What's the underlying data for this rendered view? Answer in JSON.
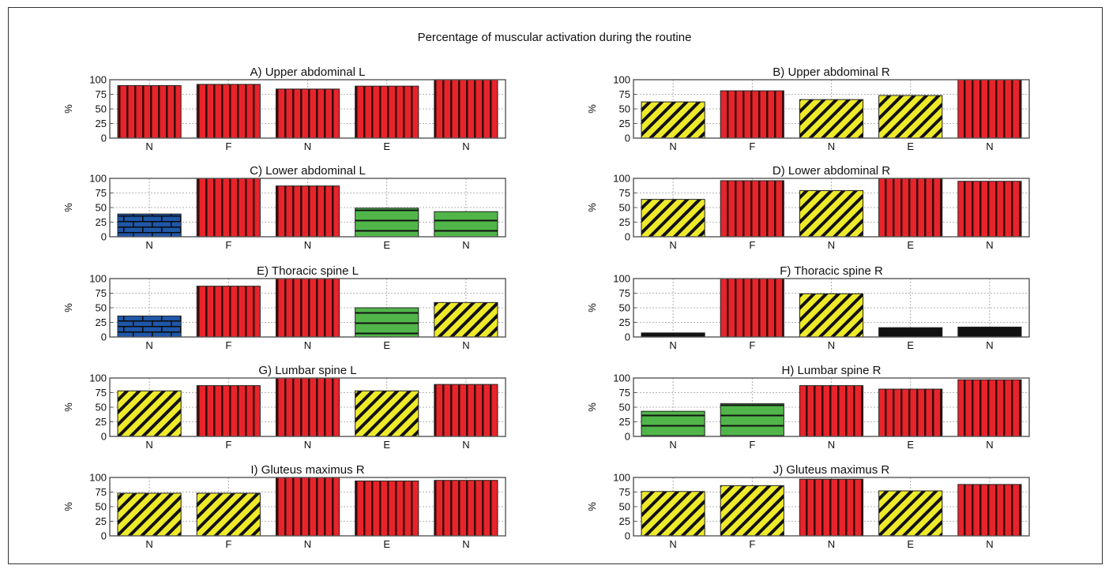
{
  "title": "Percentage of muscular activation during the routine",
  "ylabel": "%",
  "categories": [
    "N",
    "F",
    "N",
    "E",
    "N"
  ],
  "ylim": [
    0,
    100
  ],
  "yticks": [
    0,
    25,
    50,
    75,
    100
  ],
  "grid": true,
  "colors": {
    "red": "#e8242b",
    "yellow": "#eeea2a",
    "blue": "#1f57a8",
    "green": "#51b64a",
    "black": "#111111"
  },
  "chart_data": [
    {
      "type": "bar",
      "title": "A) Upper abdominal L",
      "categories": [
        "N",
        "F",
        "N",
        "E",
        "N"
      ],
      "values": [
        90,
        92,
        84,
        89,
        100
      ],
      "patterns": [
        "red",
        "red",
        "red",
        "red",
        "red"
      ],
      "ylabel": "%",
      "ylim": [
        0,
        100
      ]
    },
    {
      "type": "bar",
      "title": "B) Upper abdominal R",
      "categories": [
        "N",
        "F",
        "N",
        "E",
        "N"
      ],
      "values": [
        62,
        81,
        66,
        73,
        100
      ],
      "patterns": [
        "yellow",
        "red",
        "yellow",
        "yellow",
        "red"
      ],
      "ylabel": "%",
      "ylim": [
        0,
        100
      ]
    },
    {
      "type": "bar",
      "title": "C) Lower abdominal L",
      "categories": [
        "N",
        "F",
        "N",
        "E",
        "N"
      ],
      "values": [
        39,
        100,
        87,
        49,
        43
      ],
      "patterns": [
        "blue",
        "red",
        "red",
        "green",
        "green"
      ],
      "ylabel": "%",
      "ylim": [
        0,
        100
      ]
    },
    {
      "type": "bar",
      "title": "D) Lower abdominal R",
      "categories": [
        "N",
        "F",
        "N",
        "E",
        "N"
      ],
      "values": [
        64,
        96,
        79,
        100,
        95
      ],
      "patterns": [
        "yellow",
        "red",
        "yellow",
        "red",
        "red"
      ],
      "ylabel": "%",
      "ylim": [
        0,
        100
      ]
    },
    {
      "type": "bar",
      "title": "E) Thoracic spine L",
      "categories": [
        "N",
        "F",
        "N",
        "E",
        "N"
      ],
      "values": [
        36,
        87,
        100,
        50,
        59
      ],
      "patterns": [
        "blue",
        "red",
        "red",
        "green",
        "yellow"
      ],
      "ylabel": "%",
      "ylim": [
        0,
        100
      ]
    },
    {
      "type": "bar",
      "title": "F) Thoracic spine R",
      "categories": [
        "N",
        "F",
        "N",
        "E",
        "N"
      ],
      "values": [
        7,
        100,
        74,
        16,
        17
      ],
      "patterns": [
        "black",
        "red",
        "yellow",
        "black",
        "black"
      ],
      "ylabel": "%",
      "ylim": [
        0,
        100
      ]
    },
    {
      "type": "bar",
      "title": "G) Lumbar spine L",
      "categories": [
        "N",
        "F",
        "N",
        "E",
        "N"
      ],
      "values": [
        78,
        87,
        100,
        78,
        89
      ],
      "patterns": [
        "yellow",
        "red",
        "red",
        "yellow",
        "red"
      ],
      "ylabel": "%",
      "ylim": [
        0,
        100
      ]
    },
    {
      "type": "bar",
      "title": "H) Lumbar spine R",
      "categories": [
        "N",
        "F",
        "N",
        "E",
        "N"
      ],
      "values": [
        43,
        56,
        87,
        81,
        97
      ],
      "patterns": [
        "green",
        "green",
        "red",
        "red",
        "red"
      ],
      "ylabel": "%",
      "ylim": [
        0,
        100
      ]
    },
    {
      "type": "bar",
      "title": "I) Gluteus maximus R",
      "categories": [
        "N",
        "F",
        "N",
        "E",
        "N"
      ],
      "values": [
        73,
        73,
        100,
        94,
        95
      ],
      "patterns": [
        "yellow",
        "yellow",
        "red",
        "red",
        "red"
      ],
      "ylabel": "%",
      "ylim": [
        0,
        100
      ]
    },
    {
      "type": "bar",
      "title": "J) Gluteus maximus R",
      "categories": [
        "N",
        "F",
        "N",
        "E",
        "N"
      ],
      "values": [
        76,
        86,
        97,
        77,
        88
      ],
      "patterns": [
        "yellow",
        "yellow",
        "red",
        "yellow",
        "red"
      ],
      "ylabel": "%",
      "ylim": [
        0,
        100
      ]
    }
  ]
}
